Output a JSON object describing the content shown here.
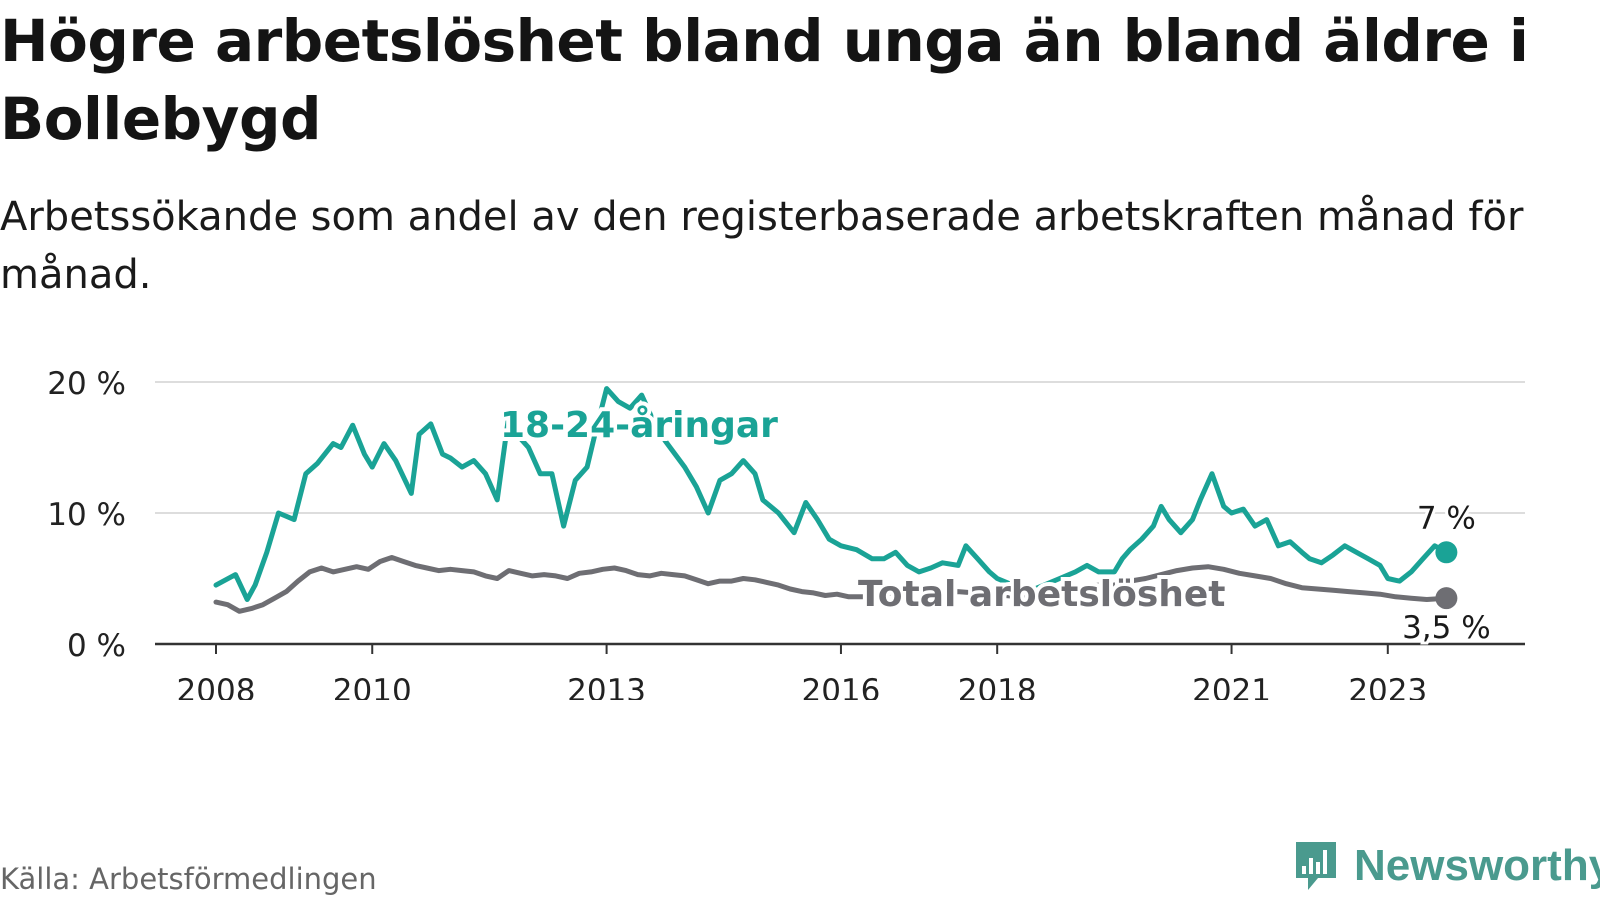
{
  "title": "Högre arbetslöshet bland unga än bland äldre i Bollebygd",
  "subtitle": "Arbetssökande som andel av den registerbaserade arbetskraften månad för månad.",
  "source": "Källa: Arbetsförmedlingen",
  "brand": "Newsworthy",
  "colors": {
    "youth": "#1aa396",
    "total": "#6e6e73",
    "grid": "#dddddd",
    "axis": "#333333",
    "brand": "#4a9a8e"
  },
  "chart_data": {
    "type": "line",
    "ylim": [
      0,
      20
    ],
    "y_ticks": [
      0,
      10,
      20
    ],
    "y_tick_labels": [
      "0 %",
      "10 %",
      "20 %"
    ],
    "xlim": [
      2008,
      2023.95
    ],
    "x_ticks": [
      2008,
      2010,
      2013,
      2016,
      2018,
      2021,
      2023
    ],
    "x_tick_labels": [
      "2008",
      "2010",
      "2013",
      "2016",
      "2018",
      "2021",
      "2023"
    ],
    "grid": true,
    "series": [
      {
        "name": "18-24-åringar",
        "label": "18-24-åringar",
        "end_label": "7 %",
        "x": [
          2008.0,
          2008.25,
          2008.4,
          2008.5,
          2008.65,
          2008.8,
          2009.0,
          2009.15,
          2009.3,
          2009.5,
          2009.6,
          2009.75,
          2009.9,
          2010.0,
          2010.15,
          2010.3,
          2010.5,
          2010.6,
          2010.75,
          2010.9,
          2011.0,
          2011.15,
          2011.3,
          2011.45,
          2011.6,
          2011.75,
          2011.85,
          2012.0,
          2012.15,
          2012.3,
          2012.45,
          2012.6,
          2012.75,
          2012.85,
          2013.0,
          2013.15,
          2013.3,
          2013.45,
          2013.6,
          2013.75,
          2014.0,
          2014.15,
          2014.3,
          2014.45,
          2014.6,
          2014.75,
          2014.9,
          2015.0,
          2015.2,
          2015.4,
          2015.55,
          2015.7,
          2015.85,
          2016.0,
          2016.2,
          2016.4,
          2016.55,
          2016.7,
          2016.85,
          2017.0,
          2017.15,
          2017.3,
          2017.5,
          2017.6,
          2017.75,
          2017.9,
          2018.0,
          2018.2,
          2018.4,
          2018.6,
          2018.8,
          2019.0,
          2019.15,
          2019.3,
          2019.5,
          2019.6,
          2019.7,
          2019.85,
          2020.0,
          2020.1,
          2020.2,
          2020.35,
          2020.5,
          2020.6,
          2020.75,
          2020.9,
          2021.0,
          2021.15,
          2021.3,
          2021.45,
          2021.6,
          2021.75,
          2021.9,
          2022.0,
          2022.15,
          2022.3,
          2022.45,
          2022.6,
          2022.75,
          2022.9,
          2023.0,
          2023.15,
          2023.3,
          2023.45,
          2023.6,
          2023.75
        ],
        "values": [
          4.5,
          5.3,
          3.4,
          4.5,
          7.0,
          10.0,
          9.5,
          13.0,
          13.8,
          15.3,
          15.0,
          16.7,
          14.5,
          13.5,
          15.3,
          14.0,
          11.5,
          16.0,
          16.8,
          14.5,
          14.2,
          13.5,
          14.0,
          13.0,
          11.0,
          17.5,
          16.0,
          15.0,
          13.0,
          13.0,
          9.0,
          12.5,
          13.5,
          16.0,
          19.5,
          18.5,
          18.0,
          19.0,
          17.0,
          15.5,
          13.5,
          12.0,
          10.0,
          12.5,
          13.0,
          14.0,
          13.0,
          11.0,
          10.0,
          8.5,
          10.8,
          9.5,
          8.0,
          7.5,
          7.2,
          6.5,
          6.5,
          7.0,
          6.0,
          5.5,
          5.8,
          6.2,
          6.0,
          7.5,
          6.5,
          5.5,
          5.0,
          4.5,
          4.0,
          4.5,
          5.0,
          5.5,
          6.0,
          5.5,
          5.5,
          6.5,
          7.2,
          8.0,
          9.0,
          10.5,
          9.5,
          8.5,
          9.5,
          11.0,
          13.0,
          10.5,
          10.0,
          10.3,
          9.0,
          9.5,
          7.5,
          7.8,
          7.0,
          6.5,
          6.2,
          6.8,
          7.5,
          7.0,
          6.5,
          6.0,
          5.0,
          4.8,
          5.5,
          6.5,
          7.5,
          7.0
        ]
      },
      {
        "name": "Total arbetslöshet",
        "label": "Total arbetslöshet",
        "end_label": "3,5 %",
        "x": [
          2008.0,
          2008.15,
          2008.3,
          2008.45,
          2008.6,
          2008.75,
          2008.9,
          2009.05,
          2009.2,
          2009.35,
          2009.5,
          2009.65,
          2009.8,
          2009.95,
          2010.1,
          2010.25,
          2010.4,
          2010.55,
          2010.7,
          2010.85,
          2011.0,
          2011.15,
          2011.3,
          2011.45,
          2011.6,
          2011.75,
          2011.9,
          2012.05,
          2012.2,
          2012.35,
          2012.5,
          2012.65,
          2012.8,
          2012.95,
          2013.1,
          2013.25,
          2013.4,
          2013.55,
          2013.7,
          2013.85,
          2014.0,
          2014.15,
          2014.3,
          2014.45,
          2014.6,
          2014.75,
          2014.9,
          2015.05,
          2015.2,
          2015.35,
          2015.5,
          2015.65,
          2015.8,
          2015.95,
          2016.1,
          2016.3,
          2016.5,
          2016.7,
          2016.9,
          2017.1,
          2017.3,
          2017.5,
          2017.7,
          2017.9,
          2018.1,
          2018.3,
          2018.5,
          2018.7,
          2018.9,
          2019.1,
          2019.3,
          2019.5,
          2019.7,
          2019.9,
          2020.1,
          2020.3,
          2020.5,
          2020.7,
          2020.9,
          2021.1,
          2021.3,
          2021.5,
          2021.7,
          2021.9,
          2022.1,
          2022.3,
          2022.5,
          2022.7,
          2022.9,
          2023.1,
          2023.3,
          2023.5,
          2023.75
        ],
        "values": [
          3.2,
          3.0,
          2.5,
          2.7,
          3.0,
          3.5,
          4.0,
          4.8,
          5.5,
          5.8,
          5.5,
          5.7,
          5.9,
          5.7,
          6.3,
          6.6,
          6.3,
          6.0,
          5.8,
          5.6,
          5.7,
          5.6,
          5.5,
          5.2,
          5.0,
          5.6,
          5.4,
          5.2,
          5.3,
          5.2,
          5.0,
          5.4,
          5.5,
          5.7,
          5.8,
          5.6,
          5.3,
          5.2,
          5.4,
          5.3,
          5.2,
          4.9,
          4.6,
          4.8,
          4.8,
          5.0,
          4.9,
          4.7,
          4.5,
          4.2,
          4.0,
          3.9,
          3.7,
          3.8,
          3.6,
          3.6,
          3.8,
          3.9,
          4.0,
          4.0,
          3.9,
          4.0,
          3.9,
          3.8,
          3.7,
          3.6,
          3.5,
          3.8,
          4.0,
          4.3,
          4.5,
          4.5,
          4.8,
          5.0,
          5.3,
          5.6,
          5.8,
          5.9,
          5.7,
          5.4,
          5.2,
          5.0,
          4.6,
          4.3,
          4.2,
          4.1,
          4.0,
          3.9,
          3.8,
          3.6,
          3.5,
          3.4,
          3.5
        ]
      }
    ]
  }
}
